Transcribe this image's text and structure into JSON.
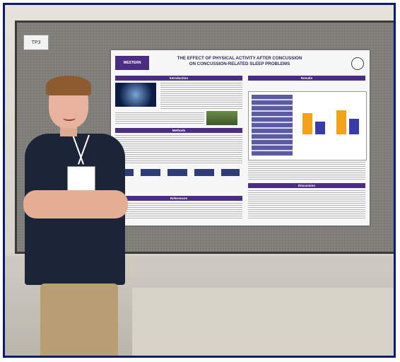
{
  "scene": {
    "board_tag": "TP3",
    "poster": {
      "logo": "WESTERN",
      "title_line1": "THE EFFECT OF PHYSICAL ACTIVITY AFTER CONCUSSION",
      "title_line2": "ON CONCUSSION-RELATED SLEEP PROBLEMS",
      "sections": {
        "introduction": "Introduction",
        "methods": "Methods",
        "references": "References",
        "results": "Results",
        "discussion": "Discussion"
      }
    }
  },
  "colors": {
    "frame_border": "#0d1b6e",
    "poster_header": "#4b2e83",
    "chart_orange": "#f3a21a",
    "chart_blue": "#3a3aa8"
  }
}
